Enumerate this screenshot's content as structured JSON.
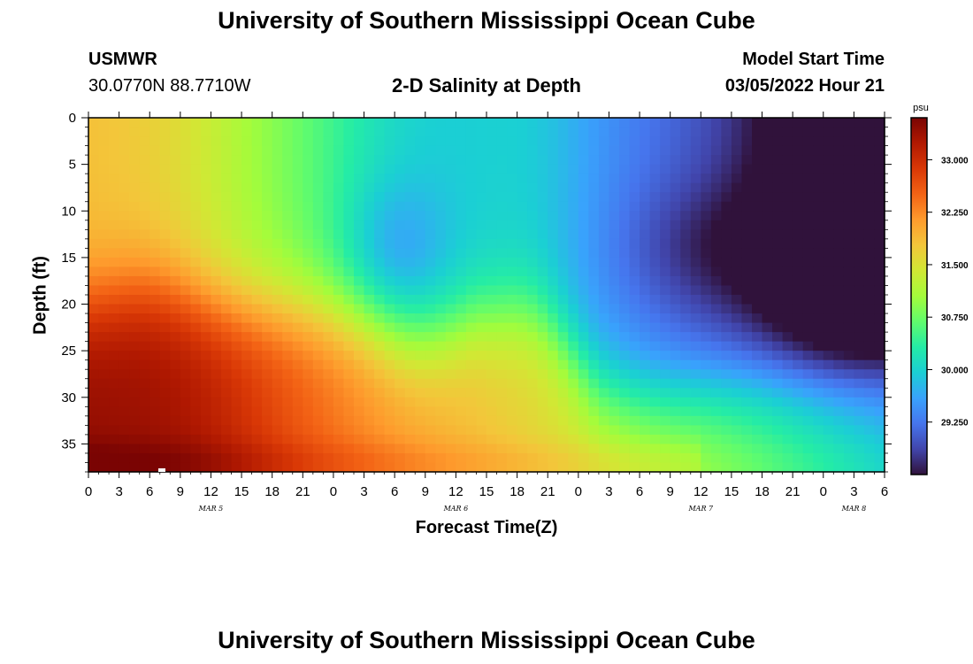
{
  "header": {
    "title": "University of Southern Mississippi Ocean Cube",
    "station_id": "USMWR",
    "coords": "30.0770N  88.7710W",
    "subtitle": "2-D Salinity at Depth",
    "model_label": "Model Start Time",
    "model_date": "03/05/2022 Hour 21"
  },
  "footer": {
    "title": "University of Southern Mississippi Ocean Cube"
  },
  "colors": {
    "colormap": [
      "#30123b",
      "#4145ab",
      "#4675ed",
      "#39a2fc",
      "#1bcfd4",
      "#24eca6",
      "#61fc6c",
      "#a4fc3b",
      "#d1e834",
      "#f3c63a",
      "#fe9b2d",
      "#f36315",
      "#d93806",
      "#b11901",
      "#7a0403"
    ]
  },
  "chart_data": {
    "type": "heatmap",
    "title": "2-D Salinity at Depth",
    "xlabel": "Forecast Time(Z)",
    "ylabel": "Depth (ft)",
    "x_tick_labels": [
      "0",
      "3",
      "6",
      "9",
      "12",
      "15",
      "18",
      "21",
      "0",
      "3",
      "6",
      "9",
      "12",
      "15",
      "18",
      "21",
      "0",
      "3",
      "6",
      "9",
      "12",
      "15",
      "18",
      "21",
      "0",
      "3",
      "6"
    ],
    "xlim_hours": [
      0,
      78
    ],
    "day_labels": [
      {
        "label": "MAR 5",
        "hour": 12
      },
      {
        "label": "MAR 6",
        "hour": 36
      },
      {
        "label": "MAR 7",
        "hour": 60
      },
      {
        "label": "MAR 8",
        "hour": 75
      }
    ],
    "y_ticks": [
      0,
      5,
      10,
      15,
      20,
      25,
      30,
      35
    ],
    "ylim": [
      0,
      38
    ],
    "y_inverted": true,
    "colorbar": {
      "unit": "psu",
      "tick_values": [
        29.25,
        30.0,
        30.75,
        31.5,
        32.25,
        33.0
      ],
      "tick_labels": [
        "29.250",
        "30.000",
        "30.750",
        "31.500",
        "32.250",
        "33.000"
      ],
      "range": [
        28.5,
        33.6
      ]
    },
    "field_description_points": [
      {
        "hour": 0,
        "depth": 5,
        "value": 31.6
      },
      {
        "hour": 7,
        "depth": 5,
        "value": 31.9
      },
      {
        "hour": 20,
        "depth": 5,
        "value": 30.8
      },
      {
        "hour": 30,
        "depth": 5,
        "value": 30.3
      },
      {
        "hour": 52,
        "depth": 5,
        "value": 29.8
      },
      {
        "hour": 76,
        "depth": 3,
        "value": 28.6
      },
      {
        "hour": 70,
        "depth": 12,
        "value": 29.0
      },
      {
        "hour": 10,
        "depth": 30,
        "value": 33.3
      },
      {
        "hour": 36,
        "depth": 30,
        "value": 31.6
      },
      {
        "hour": 60,
        "depth": 30,
        "value": 30.3
      }
    ]
  }
}
